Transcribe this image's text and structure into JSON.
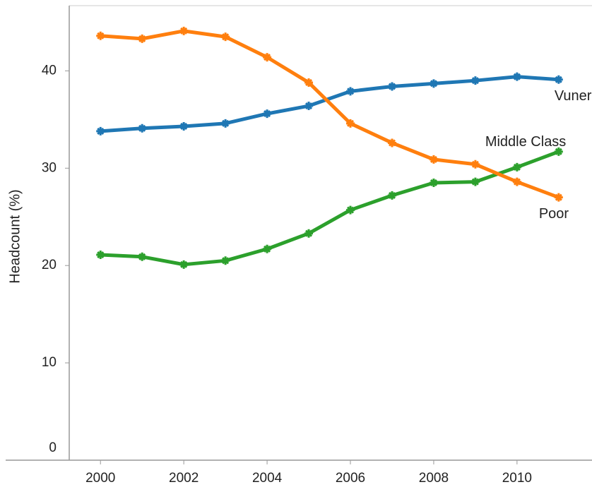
{
  "chart_data": {
    "type": "line",
    "y_label": "Headcount (%)",
    "x": [
      2000,
      2001,
      2002,
      2003,
      2004,
      2005,
      2006,
      2007,
      2008,
      2009,
      2010,
      2011
    ],
    "series": [
      {
        "name": "Vunerable",
        "color": "#1f77b4",
        "values": [
          33.8,
          34.1,
          34.3,
          34.6,
          35.6,
          36.4,
          37.9,
          38.4,
          38.7,
          39.0,
          39.4,
          39.1
        ]
      },
      {
        "name": "Middle Class",
        "color": "#2ca02c",
        "values": [
          21.1,
          20.9,
          20.1,
          20.5,
          21.7,
          23.3,
          25.7,
          27.2,
          28.5,
          28.6,
          30.1,
          31.7
        ]
      },
      {
        "name": "Poor",
        "color": "#ff7f0e",
        "values": [
          43.6,
          43.3,
          44.1,
          43.5,
          41.4,
          38.8,
          34.6,
          32.6,
          30.9,
          30.4,
          28.6,
          27.0
        ]
      }
    ],
    "xlim": [
      1999.25,
      2011.8
    ],
    "xticks": [
      2000,
      2002,
      2004,
      2006,
      2008,
      2010
    ],
    "ylim": [
      0,
      46.7
    ],
    "yticks": [
      0,
      10,
      20,
      30,
      40
    ],
    "grid": false
  }
}
